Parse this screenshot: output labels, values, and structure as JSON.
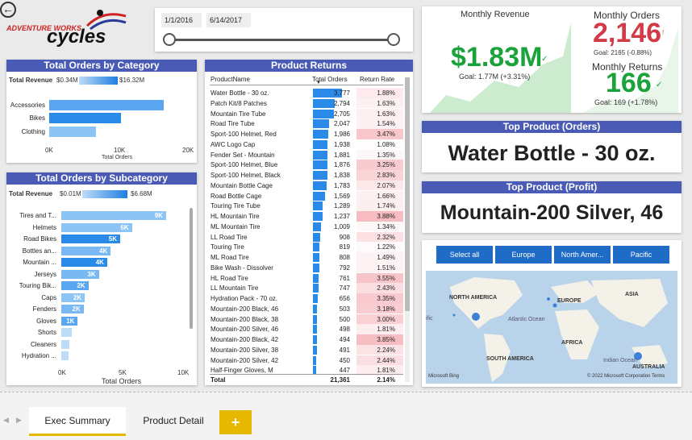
{
  "logo": {
    "line1": "ADVENTURE WORKS",
    "line2": "cycles"
  },
  "date_slicer": {
    "start": "1/1/2016",
    "end": "6/14/2017"
  },
  "category_chart": {
    "title": "Total Orders by Category",
    "revenue_label": "Total Revenue",
    "rev_min": "$0.34M",
    "rev_max": "$16.32M",
    "rows": [
      {
        "label": "Accessories",
        "value": 16700
      },
      {
        "label": "Bikes",
        "value": 10500
      },
      {
        "label": "Clothing",
        "value": 6800
      }
    ],
    "axis": [
      "0K",
      "10K",
      "20K"
    ],
    "xlabel": "Total Orders"
  },
  "subcategory_chart": {
    "title": "Total Orders by Subcategory",
    "revenue_label": "Total Revenue",
    "rev_min": "$0.01M",
    "rev_max": "$6.68M",
    "rows": [
      {
        "label": "Tires and T...",
        "value": 8900,
        "text": "9K"
      },
      {
        "label": "Helmets",
        "value": 6000,
        "text": "6K"
      },
      {
        "label": "Road Bikes",
        "value": 5000,
        "text": "5K"
      },
      {
        "label": "Bottles an...",
        "value": 4200,
        "text": "4K"
      },
      {
        "label": "Mountain ...",
        "value": 3900,
        "text": "4K"
      },
      {
        "label": "Jerseys",
        "value": 3200,
        "text": "3K"
      },
      {
        "label": "Touring Bik...",
        "value": 2300,
        "text": "2K"
      },
      {
        "label": "Caps",
        "value": 2000,
        "text": "2K"
      },
      {
        "label": "Fenders",
        "value": 1900,
        "text": "2K"
      },
      {
        "label": "Gloves",
        "value": 1400,
        "text": "1K"
      },
      {
        "label": "Shorts",
        "value": 900,
        "text": ""
      },
      {
        "label": "Cleaners",
        "value": 700,
        "text": ""
      },
      {
        "label": "Hydration ...",
        "value": 600,
        "text": ""
      }
    ],
    "axis": [
      "0K",
      "5K",
      "10K"
    ],
    "xlabel": "Total Orders"
  },
  "returns_table": {
    "title": "Product Returns",
    "cols": [
      "ProductName",
      "Total Orders",
      "Return Rate"
    ],
    "rows": [
      [
        "Water Bottle - 30 oz.",
        "3,777",
        "1.88%"
      ],
      [
        "Patch Kit/8 Patches",
        "2,794",
        "1.63%"
      ],
      [
        "Mountain Tire Tube",
        "2,705",
        "1.63%"
      ],
      [
        "Road Tire Tube",
        "2,047",
        "1.54%"
      ],
      [
        "Sport-100 Helmet, Red",
        "1,986",
        "3.47%"
      ],
      [
        "AWC Logo Cap",
        "1,938",
        "1.08%"
      ],
      [
        "Fender Set - Mountain",
        "1,881",
        "1.35%"
      ],
      [
        "Sport-100 Helmet, Blue",
        "1,876",
        "3.25%"
      ],
      [
        "Sport-100 Helmet, Black",
        "1,838",
        "2.83%"
      ],
      [
        "Mountain Bottle Cage",
        "1,783",
        "2.07%"
      ],
      [
        "Road Bottle Cage",
        "1,569",
        "1.66%"
      ],
      [
        "Touring Tire Tube",
        "1,289",
        "1.74%"
      ],
      [
        "HL Mountain Tire",
        "1,237",
        "3.88%"
      ],
      [
        "ML Mountain Tire",
        "1,009",
        "1.34%"
      ],
      [
        "LL Road Tire",
        "908",
        "2.32%"
      ],
      [
        "Touring Tire",
        "819",
        "1.22%"
      ],
      [
        "ML Road Tire",
        "808",
        "1.49%"
      ],
      [
        "Bike Wash - Dissolver",
        "792",
        "1.51%"
      ],
      [
        "HL Road Tire",
        "761",
        "3.55%"
      ],
      [
        "LL Mountain Tire",
        "747",
        "2.43%"
      ],
      [
        "Hydration Pack - 70 oz.",
        "656",
        "3.35%"
      ],
      [
        "Mountain-200 Black, 46",
        "503",
        "3.18%"
      ],
      [
        "Mountain-200 Black, 38",
        "500",
        "3.00%"
      ],
      [
        "Mountain-200 Silver, 46",
        "498",
        "1.81%"
      ],
      [
        "Mountain-200 Black, 42",
        "494",
        "3.85%"
      ],
      [
        "Mountain-200 Silver, 38",
        "491",
        "2.24%"
      ],
      [
        "Mountain-200 Silver, 42",
        "450",
        "2.44%"
      ],
      [
        "Half-Finger Gloves, M",
        "447",
        "1.81%"
      ]
    ],
    "orders_num": [
      3777,
      2794,
      2705,
      2047,
      1986,
      1938,
      1881,
      1876,
      1838,
      1783,
      1569,
      1289,
      1237,
      1009,
      908,
      819,
      808,
      792,
      761,
      747,
      656,
      503,
      500,
      498,
      494,
      491,
      450,
      447
    ],
    "rate_num": [
      1.88,
      1.63,
      1.63,
      1.54,
      3.47,
      1.08,
      1.35,
      3.25,
      2.83,
      2.07,
      1.66,
      1.74,
      3.88,
      1.34,
      2.32,
      1.22,
      1.49,
      1.51,
      3.55,
      2.43,
      3.35,
      3.18,
      3.0,
      1.81,
      3.85,
      2.24,
      2.44,
      1.81
    ],
    "total": [
      "Total",
      "21,361",
      "2.14%"
    ]
  },
  "kpi": {
    "rev_label": "Monthly Revenue",
    "rev_value": "$1.83M",
    "rev_goal": "Goal: 1.77M (+3.31%)",
    "orders_label": "Monthly Orders",
    "orders_value": "2,146",
    "orders_goal": "Goal: 2165 (-0.88%)",
    "returns_label": "Monthly Returns",
    "returns_value": "166",
    "returns_goal": "Goal: 169 (+1.78%)"
  },
  "top_orders": {
    "title": "Top Product (Orders)",
    "value": "Water Bottle - 30 oz."
  },
  "top_profit": {
    "title": "Top Product (Profit)",
    "value": "Mountain-200 Silver, 46"
  },
  "region_buttons": [
    "Select all",
    "Europe",
    "North Amer...",
    "Pacific"
  ],
  "map": {
    "labels": [
      "NORTH AMERICA",
      "EUROPE",
      "ASIA",
      "Atlantic Ocean",
      "AFRICA",
      "SOUTH AMERICA",
      "Indian Ocean",
      "AUSTRALIA",
      "ific"
    ],
    "credit": "© 2022 Microsoft Corporation  Terms",
    "bing": "Microsoft Bing"
  },
  "tabs": [
    "Exec Summary",
    "Product Detail"
  ],
  "colors": {
    "accent": "#4a5bb5",
    "green": "#1aa33a",
    "red": "#d23a48",
    "bar": "#5aa6f0"
  }
}
